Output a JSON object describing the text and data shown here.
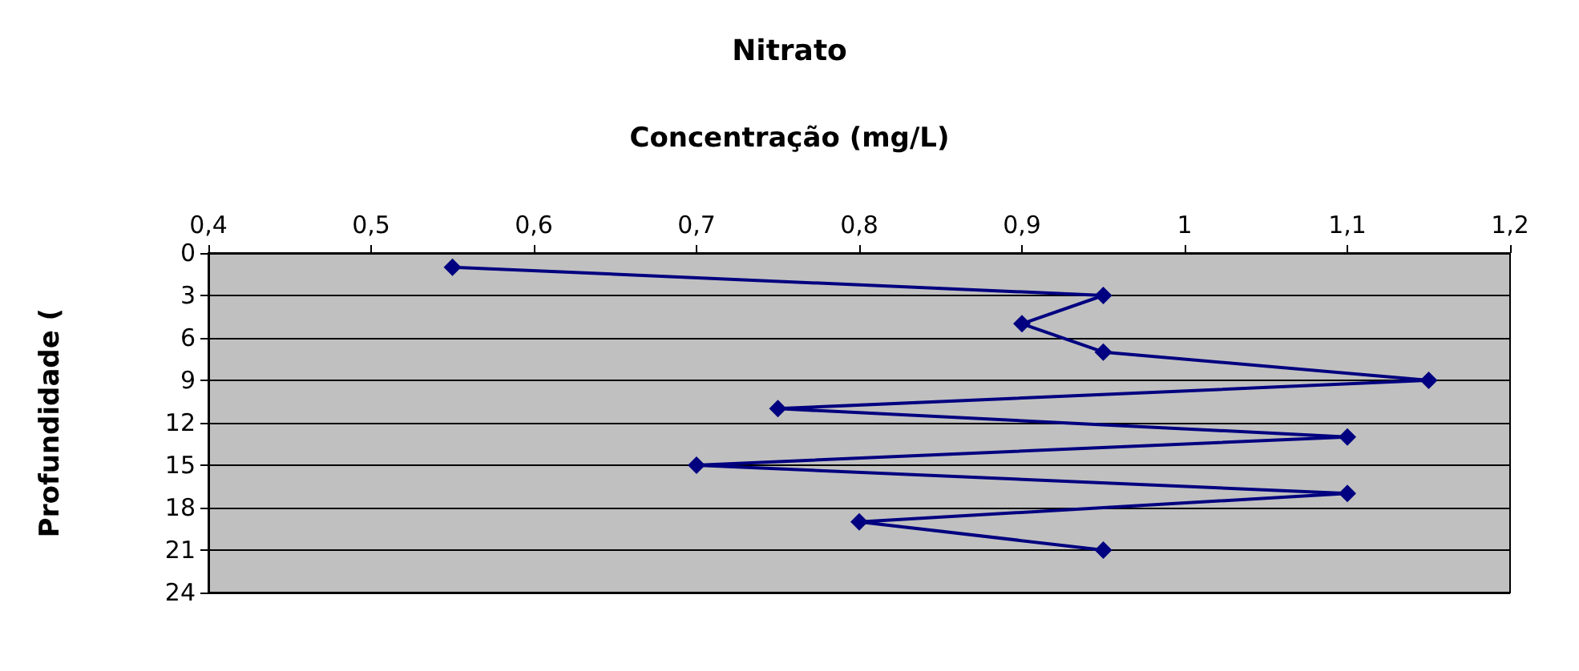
{
  "chart_data": {
    "type": "line",
    "title": "Nitrato",
    "xlabel": "Concentração (mg/L)",
    "ylabel": "Profundidade (",
    "x": [
      0.55,
      0.95,
      0.9,
      0.95,
      1.15,
      0.75,
      1.1,
      0.7,
      1.1,
      0.8,
      0.95
    ],
    "series": [
      {
        "color": "#000080",
        "values": [
          1,
          3,
          5,
          7,
          9,
          11,
          13,
          15,
          17,
          19,
          21
        ]
      }
    ],
    "xlim": [
      0.4,
      1.2
    ],
    "xticks": [
      {
        "value": 0.4,
        "label": "0,4"
      },
      {
        "value": 0.5,
        "label": "0,5"
      },
      {
        "value": 0.6,
        "label": "0,6"
      },
      {
        "value": 0.7,
        "label": "0,7"
      },
      {
        "value": 0.8,
        "label": "0,8"
      },
      {
        "value": 0.9,
        "label": "0,9"
      },
      1,
      {
        "value": 1.1,
        "label": "1,1"
      },
      {
        "value": 1.2,
        "label": "1,2"
      }
    ],
    "ylim": [
      24,
      0
    ],
    "yticks": [
      0,
      3,
      6,
      9,
      12,
      15,
      18,
      21,
      24
    ],
    "grid": "y",
    "marker": "diamond",
    "line_style": "solid"
  }
}
